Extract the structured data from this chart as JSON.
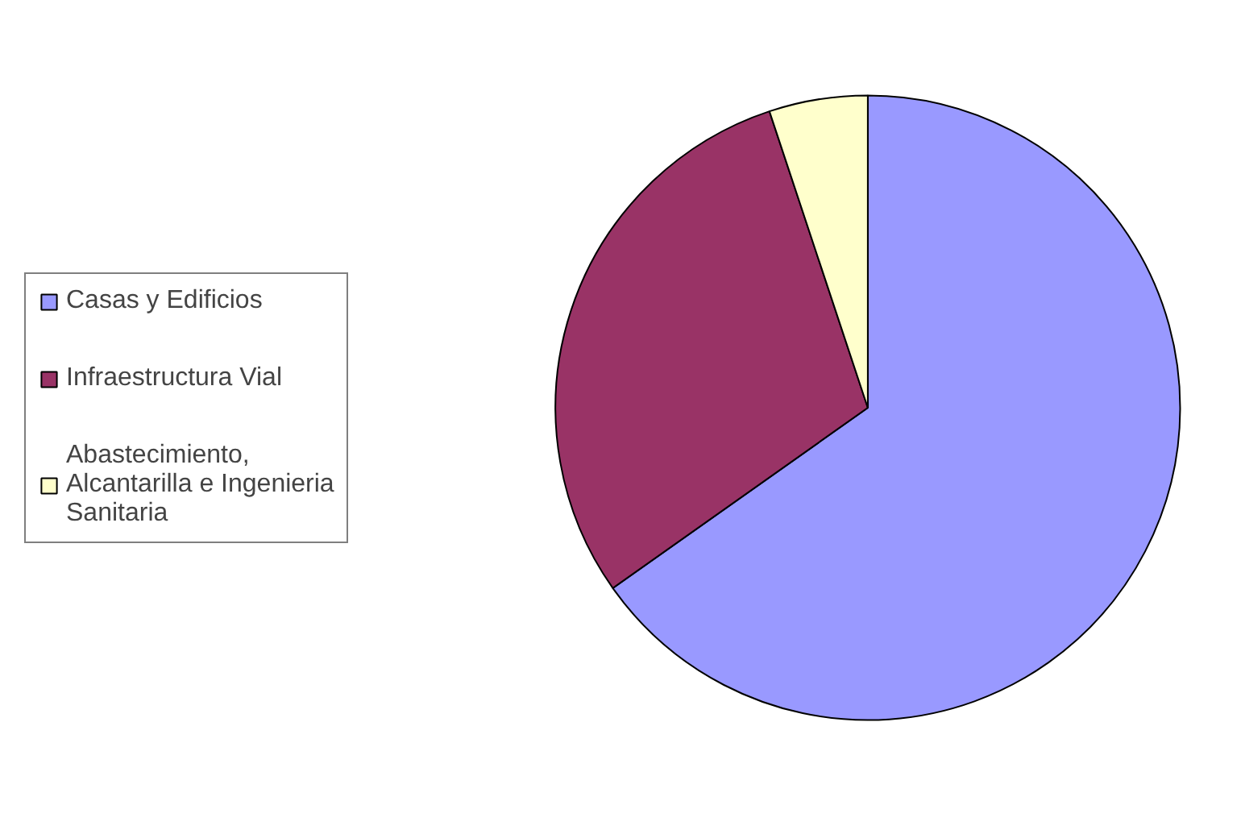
{
  "chart_data": {
    "type": "pie",
    "categories": [
      "Casas y Edificios",
      "Infraestructura Vial",
      "Abastecimiento, Alcantarilla e Ingenieria Sanitaria"
    ],
    "values": [
      65.2,
      29.7,
      5.1
    ],
    "colors": [
      "#9999ff",
      "#993366",
      "#ffffcc"
    ],
    "legend": "left"
  }
}
